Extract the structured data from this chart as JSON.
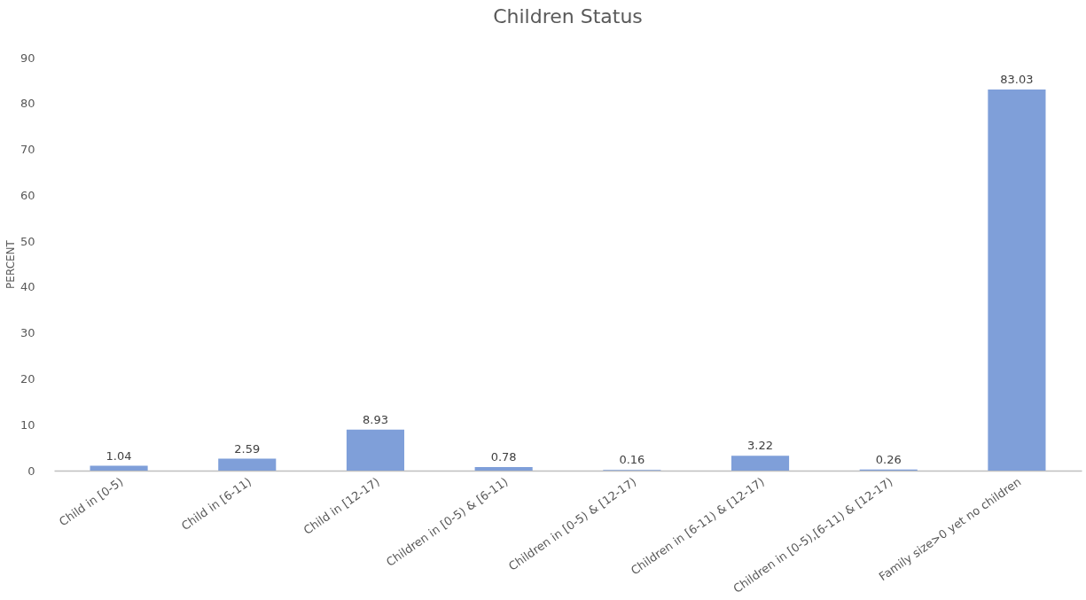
{
  "chart_data": {
    "type": "bar",
    "title": "Children Status",
    "ylabel": "PERCENT",
    "categories": [
      "Child in [0-5)",
      "Child in [6-11)",
      "Child in [12-17)",
      "Children in [0-5) & [6-11)",
      "Children in [0-5) & [12-17)",
      "Children in [6-11) & [12-17)",
      "Children in [0-5),[6-11) & [12-17)",
      "Family size>0 yet no children"
    ],
    "values": [
      1.04,
      2.59,
      8.93,
      0.78,
      0.16,
      3.22,
      0.26,
      83.03
    ],
    "color": "#7f9fd9",
    "ylim": [
      0,
      90
    ],
    "yticks": [
      0,
      10,
      20,
      30,
      40,
      50,
      60,
      70,
      80,
      90
    ],
    "grid": false,
    "data_labels": true
  }
}
